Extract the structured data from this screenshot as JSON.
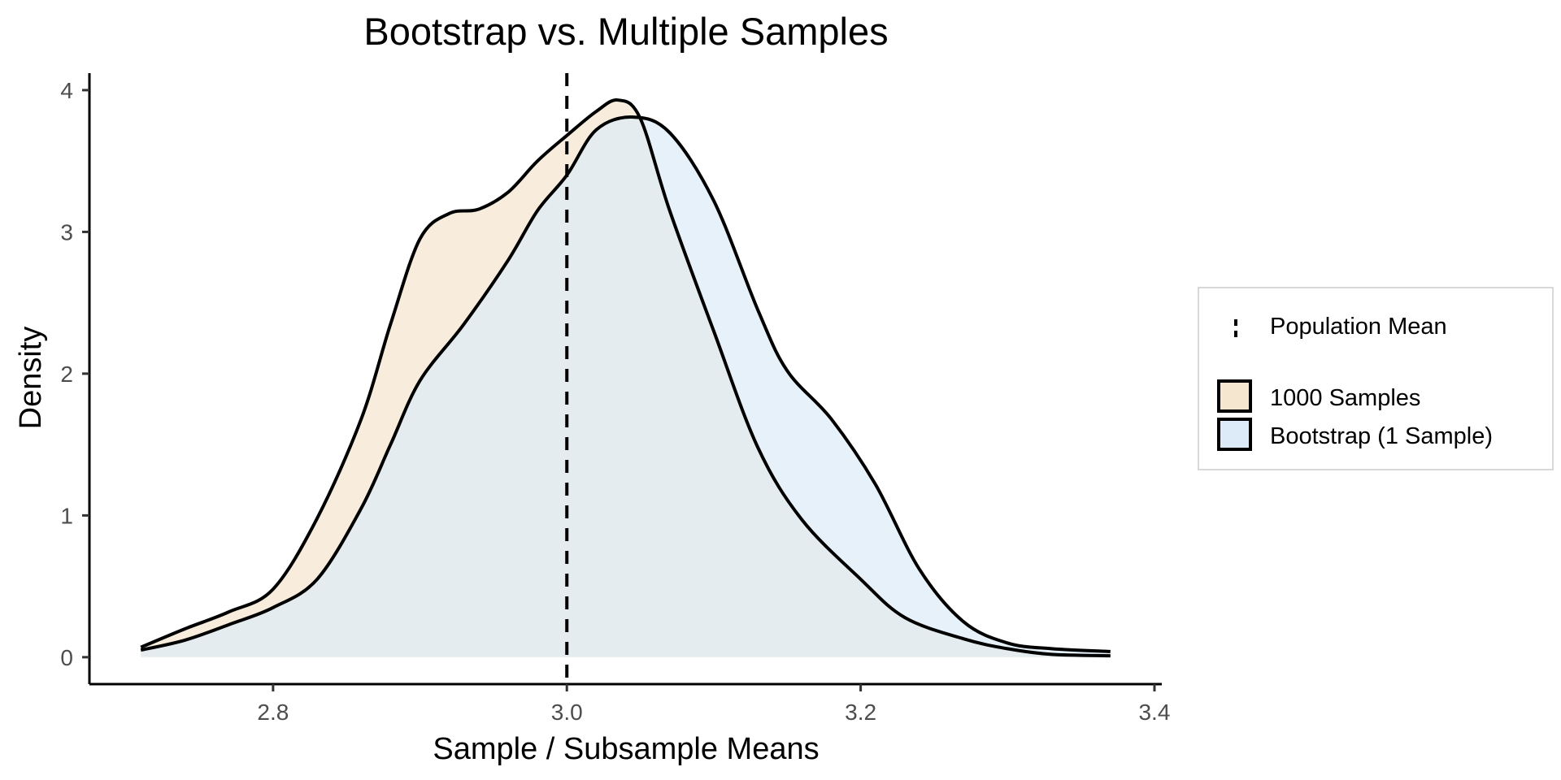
{
  "chart_data": {
    "type": "area",
    "title": "Bootstrap vs. Multiple Samples",
    "xlabel": "Sample / Subsample Means",
    "ylabel": "Density",
    "xlim": [
      2.675,
      3.405
    ],
    "ylim": [
      -0.19,
      4.12
    ],
    "x_ticks": [
      2.8,
      3.0,
      3.2,
      3.4
    ],
    "x_tick_labels": [
      "2.8",
      "3.0",
      "3.2",
      "3.4"
    ],
    "y_ticks": [
      0,
      1,
      2,
      3,
      4
    ],
    "y_tick_labels": [
      "0",
      "1",
      "2",
      "3",
      "4"
    ],
    "grid": false,
    "legend_position": "right",
    "reference_line": {
      "name": "Population Mean",
      "x": 3.0,
      "style": "dashed"
    },
    "series": [
      {
        "name": "1000 Samples",
        "color": "#f5e6cf",
        "points": [
          [
            2.71,
            0.07
          ],
          [
            2.74,
            0.2
          ],
          [
            2.77,
            0.32
          ],
          [
            2.8,
            0.48
          ],
          [
            2.83,
            0.98
          ],
          [
            2.86,
            1.68
          ],
          [
            2.88,
            2.35
          ],
          [
            2.9,
            2.95
          ],
          [
            2.92,
            3.13
          ],
          [
            2.94,
            3.16
          ],
          [
            2.96,
            3.28
          ],
          [
            2.98,
            3.5
          ],
          [
            3.0,
            3.68
          ],
          [
            3.02,
            3.85
          ],
          [
            3.035,
            3.93
          ],
          [
            3.05,
            3.8
          ],
          [
            3.07,
            3.15
          ],
          [
            3.1,
            2.3
          ],
          [
            3.13,
            1.48
          ],
          [
            3.16,
            0.97
          ],
          [
            3.2,
            0.55
          ],
          [
            3.23,
            0.28
          ],
          [
            3.27,
            0.13
          ],
          [
            3.3,
            0.06
          ],
          [
            3.33,
            0.02
          ],
          [
            3.37,
            0.01
          ]
        ]
      },
      {
        "name": "Bootstrap (1 Sample)",
        "color": "#dcebf7",
        "points": [
          [
            2.71,
            0.05
          ],
          [
            2.74,
            0.12
          ],
          [
            2.77,
            0.23
          ],
          [
            2.8,
            0.35
          ],
          [
            2.83,
            0.55
          ],
          [
            2.86,
            1.05
          ],
          [
            2.88,
            1.5
          ],
          [
            2.9,
            1.95
          ],
          [
            2.93,
            2.35
          ],
          [
            2.96,
            2.8
          ],
          [
            2.98,
            3.15
          ],
          [
            3.0,
            3.4
          ],
          [
            3.02,
            3.72
          ],
          [
            3.045,
            3.81
          ],
          [
            3.07,
            3.7
          ],
          [
            3.1,
            3.22
          ],
          [
            3.13,
            2.45
          ],
          [
            3.15,
            2.02
          ],
          [
            3.18,
            1.68
          ],
          [
            3.21,
            1.22
          ],
          [
            3.24,
            0.62
          ],
          [
            3.27,
            0.25
          ],
          [
            3.3,
            0.1
          ],
          [
            3.33,
            0.06
          ],
          [
            3.37,
            0.04
          ]
        ]
      }
    ]
  }
}
